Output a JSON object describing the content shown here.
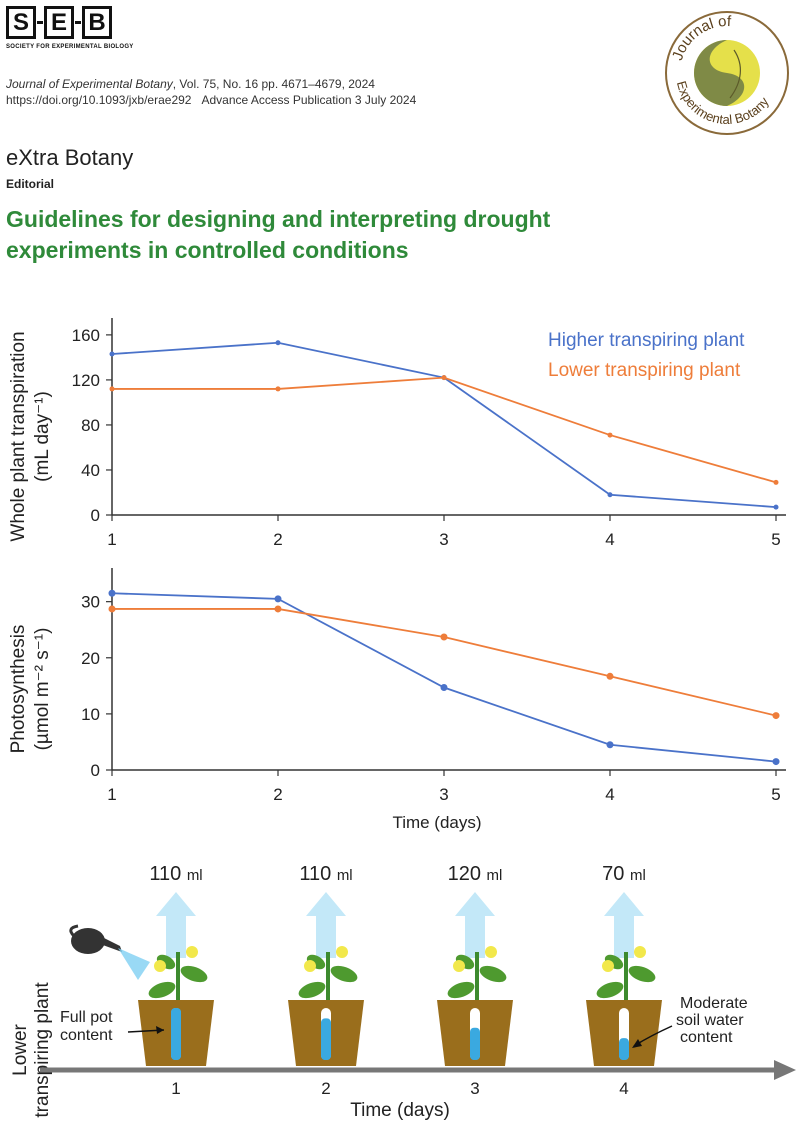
{
  "header": {
    "logo_letters": [
      "S",
      "E",
      "B"
    ],
    "logo_caption": "SOCIETY FOR EXPERIMENTAL BIOLOGY",
    "journal_name": "Journal of Experimental Botany",
    "journal_details": ", Vol. 75, No. 16 pp. 4671–4679, 2024",
    "doi": "https://doi.org/10.1093/jxb/erae292",
    "access": "Advance Access Publication 3 July 2024",
    "seal_line1": "Journal of",
    "seal_line2": "Experimental Botany"
  },
  "article": {
    "series": "eXtra Botany",
    "type": "Editorial",
    "title": "Guidelines for designing and interpreting drought experiments in controlled conditions"
  },
  "colors": {
    "higher": "#4a72c9",
    "lower": "#ee7d3a",
    "title_green": "#2f8a3a",
    "pot": "#9a6e1c",
    "water": "#3aa9e0"
  },
  "chart_data": [
    {
      "type": "line",
      "title": "",
      "ylabel_line1": "Whole plant transpiration",
      "ylabel_line2": "(mL day⁻¹)",
      "xlabel": "",
      "x": [
        1,
        2,
        3,
        4,
        5
      ],
      "yticks": [
        0,
        40,
        80,
        120,
        160
      ],
      "ylim": [
        0,
        175
      ],
      "series": [
        {
          "name": "Higher transpiring plant",
          "values": [
            143,
            153,
            122,
            18,
            7
          ]
        },
        {
          "name": "Lower transpiring plant",
          "values": [
            112,
            112,
            122,
            71,
            29
          ]
        }
      ]
    },
    {
      "type": "line",
      "title": "",
      "ylabel_line1": "Photosynthesis",
      "ylabel_line2": "(µmol m⁻² s⁻¹)",
      "xlabel": "Time (days)",
      "x": [
        1,
        2,
        3,
        4,
        5
      ],
      "yticks": [
        0,
        10,
        20,
        30
      ],
      "ylim": [
        0,
        36
      ],
      "series": [
        {
          "name": "Higher transpiring plant",
          "values": [
            31.5,
            30.5,
            14.7,
            4.5,
            1.5
          ]
        },
        {
          "name": "Lower transpiring plant",
          "values": [
            28.7,
            28.7,
            23.7,
            16.7,
            9.7
          ]
        }
      ]
    }
  ],
  "diagram": {
    "row_label_line1": "Lower",
    "row_label_line2": "transpiring plant",
    "pots": [
      {
        "day": "1",
        "amount": "110",
        "unit": "ml",
        "fill": 1.0
      },
      {
        "day": "2",
        "amount": "110",
        "unit": "ml",
        "fill": 0.8
      },
      {
        "day": "3",
        "amount": "120",
        "unit": "ml",
        "fill": 0.62
      },
      {
        "day": "4",
        "amount": "70",
        "unit": "ml",
        "fill": 0.42
      }
    ],
    "callout_left_line1": "Full pot",
    "callout_left_line2": "content",
    "callout_right_line1": "Moderate",
    "callout_right_line2": "soil water",
    "callout_right_line3": "content",
    "xlabel": "Time (days)"
  }
}
